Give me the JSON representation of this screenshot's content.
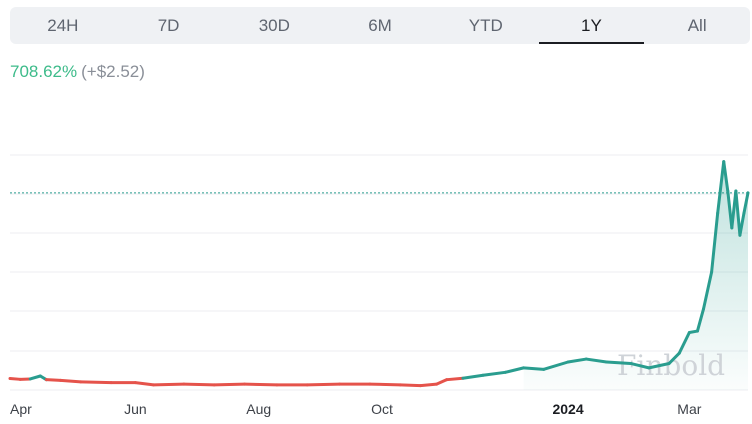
{
  "tabs": [
    {
      "label": "24H",
      "active": false
    },
    {
      "label": "7D",
      "active": false
    },
    {
      "label": "30D",
      "active": false
    },
    {
      "label": "6M",
      "active": false
    },
    {
      "label": "YTD",
      "active": false
    },
    {
      "label": "1Y",
      "active": true
    },
    {
      "label": "All",
      "active": false
    }
  ],
  "change": {
    "percent": "708.62%",
    "absolute": "(+$2.52)"
  },
  "watermark": "Finbold",
  "colors": {
    "up": "#2a9d8f",
    "down": "#e5534b",
    "gain_text": "#3dbb8a"
  },
  "chart_data": {
    "type": "line",
    "x_tick_labels": [
      "Apr",
      "Jun",
      "Aug",
      "Oct",
      "2024",
      "Mar"
    ],
    "x_tick_dates": [
      "2023-04-01",
      "2023-06-01",
      "2023-08-01",
      "2023-10-01",
      "2024-01-01",
      "2024-03-01"
    ],
    "x_range": [
      "2023-03-31",
      "2024-03-30"
    ],
    "ylim": [
      0.2,
      4.0
    ],
    "grid": true,
    "reference_price": 0.356,
    "current_price": 2.876,
    "series": [
      {
        "points": [
          [
            "2023-03-31",
            0.356
          ],
          [
            "2023-04-05",
            0.345
          ],
          [
            "2023-04-10",
            0.35
          ],
          [
            "2023-04-15",
            0.39
          ],
          [
            "2023-04-18",
            0.34
          ],
          [
            "2023-04-25",
            0.33
          ],
          [
            "2023-05-05",
            0.31
          ],
          [
            "2023-05-20",
            0.3
          ],
          [
            "2023-06-01",
            0.3
          ],
          [
            "2023-06-10",
            0.27
          ],
          [
            "2023-06-25",
            0.28
          ],
          [
            "2023-07-10",
            0.27
          ],
          [
            "2023-07-25",
            0.28
          ],
          [
            "2023-08-10",
            0.27
          ],
          [
            "2023-08-25",
            0.27
          ],
          [
            "2023-09-10",
            0.28
          ],
          [
            "2023-09-25",
            0.28
          ],
          [
            "2023-10-10",
            0.27
          ],
          [
            "2023-10-20",
            0.26
          ],
          [
            "2023-10-28",
            0.28
          ],
          [
            "2023-11-02",
            0.34
          ],
          [
            "2023-11-10",
            0.36
          ],
          [
            "2023-11-20",
            0.4
          ],
          [
            "2023-12-01",
            0.44
          ],
          [
            "2023-12-10",
            0.5
          ],
          [
            "2023-12-20",
            0.48
          ],
          [
            "2024-01-01",
            0.58
          ],
          [
            "2024-01-10",
            0.62
          ],
          [
            "2024-01-20",
            0.58
          ],
          [
            "2024-02-01",
            0.56
          ],
          [
            "2024-02-10",
            0.5
          ],
          [
            "2024-02-20",
            0.56
          ],
          [
            "2024-02-25",
            0.7
          ],
          [
            "2024-03-01",
            0.98
          ],
          [
            "2024-03-05",
            1.0
          ],
          [
            "2024-03-08",
            1.3
          ],
          [
            "2024-03-12",
            1.8
          ],
          [
            "2024-03-15",
            2.6
          ],
          [
            "2024-03-18",
            3.3
          ],
          [
            "2024-03-20",
            2.9
          ],
          [
            "2024-03-22",
            2.4
          ],
          [
            "2024-03-24",
            2.9
          ],
          [
            "2024-03-26",
            2.3
          ],
          [
            "2024-03-28",
            2.6
          ],
          [
            "2024-03-30",
            2.876
          ]
        ]
      }
    ]
  }
}
